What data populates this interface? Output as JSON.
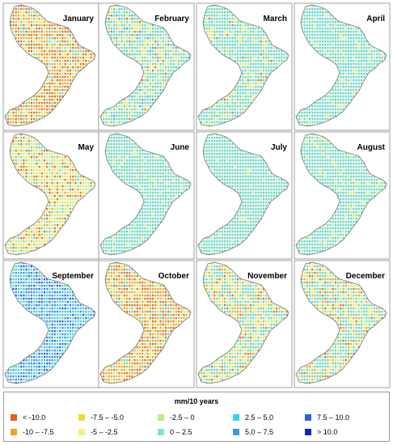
{
  "panels": [
    {
      "month": "January",
      "palette": [
        [
          "#e06a10",
          0.35
        ],
        [
          "#f2a122",
          0.3
        ],
        [
          "#f6e24a",
          0.2
        ],
        [
          "#5fd6c0",
          0.15
        ]
      ]
    },
    {
      "month": "February",
      "palette": [
        [
          "#5fd6c0",
          0.6
        ],
        [
          "#f6e24a",
          0.2
        ],
        [
          "#c7ef7a",
          0.1
        ],
        [
          "#3aa5e8",
          0.06
        ],
        [
          "#e06a10",
          0.04
        ]
      ]
    },
    {
      "month": "March",
      "palette": [
        [
          "#5fd6c0",
          0.75
        ],
        [
          "#f6e24a",
          0.12
        ],
        [
          "#c7ef7a",
          0.1
        ],
        [
          "#e06a10",
          0.03
        ]
      ]
    },
    {
      "month": "April",
      "palette": [
        [
          "#5fd6c0",
          0.8
        ],
        [
          "#c7ef7a",
          0.1
        ],
        [
          "#39d6f2",
          0.07
        ],
        [
          "#f6e24a",
          0.03
        ]
      ]
    },
    {
      "month": "May",
      "palette": [
        [
          "#f6e24a",
          0.35
        ],
        [
          "#c7ef7a",
          0.25
        ],
        [
          "#e06a10",
          0.15
        ],
        [
          "#f2a122",
          0.1
        ],
        [
          "#5fd6c0",
          0.15
        ]
      ]
    },
    {
      "month": "June",
      "palette": [
        [
          "#5fd6c0",
          0.9
        ],
        [
          "#c7ef7a",
          0.1
        ]
      ]
    },
    {
      "month": "July",
      "palette": [
        [
          "#5fd6c0",
          0.95
        ],
        [
          "#c7ef7a",
          0.05
        ]
      ]
    },
    {
      "month": "August",
      "palette": [
        [
          "#5fd6c0",
          0.85
        ],
        [
          "#c7ef7a",
          0.12
        ],
        [
          "#f6e24a",
          0.03
        ]
      ]
    },
    {
      "month": "September",
      "palette": [
        [
          "#39c8f0",
          0.45
        ],
        [
          "#3a7fe0",
          0.3
        ],
        [
          "#2a55d8",
          0.15
        ],
        [
          "#5fd6c0",
          0.1
        ]
      ]
    },
    {
      "month": "October",
      "palette": [
        [
          "#f2a122",
          0.4
        ],
        [
          "#e06a10",
          0.3
        ],
        [
          "#f6e24a",
          0.2
        ],
        [
          "#5fd6c0",
          0.1
        ]
      ]
    },
    {
      "month": "November",
      "palette": [
        [
          "#5fd6c0",
          0.45
        ],
        [
          "#f6e24a",
          0.3
        ],
        [
          "#f2a122",
          0.12
        ],
        [
          "#e06a10",
          0.08
        ],
        [
          "#c7ef7a",
          0.05
        ]
      ]
    },
    {
      "month": "December",
      "palette": [
        [
          "#5fd6c0",
          0.5
        ],
        [
          "#f6e24a",
          0.25
        ],
        [
          "#f2a122",
          0.12
        ],
        [
          "#e06a10",
          0.08
        ],
        [
          "#c7ef7a",
          0.05
        ]
      ]
    }
  ],
  "legend": {
    "title": "mm/10 years",
    "items": [
      {
        "label": "< -10.0",
        "color": "#e0621a"
      },
      {
        "label": "-10 – -7.5",
        "color": "#f2a122"
      },
      {
        "label": "-7.5 – -5.0",
        "color": "#f6d730"
      },
      {
        "label": "-5 – -2.5",
        "color": "#f3f07a"
      },
      {
        "label": "-2.5 – 0",
        "color": "#b9ef8e"
      },
      {
        "label": "0 – 2.5",
        "color": "#7fe8c8"
      },
      {
        "label": "2.5 – 5.0",
        "color": "#36d3ef"
      },
      {
        "label": "5.0 – 7.5",
        "color": "#3a9be6"
      },
      {
        "label": "7.5 – 10.0",
        "color": "#2f5fe0"
      },
      {
        "label": "> 10.0",
        "color": "#1420c8"
      }
    ]
  }
}
